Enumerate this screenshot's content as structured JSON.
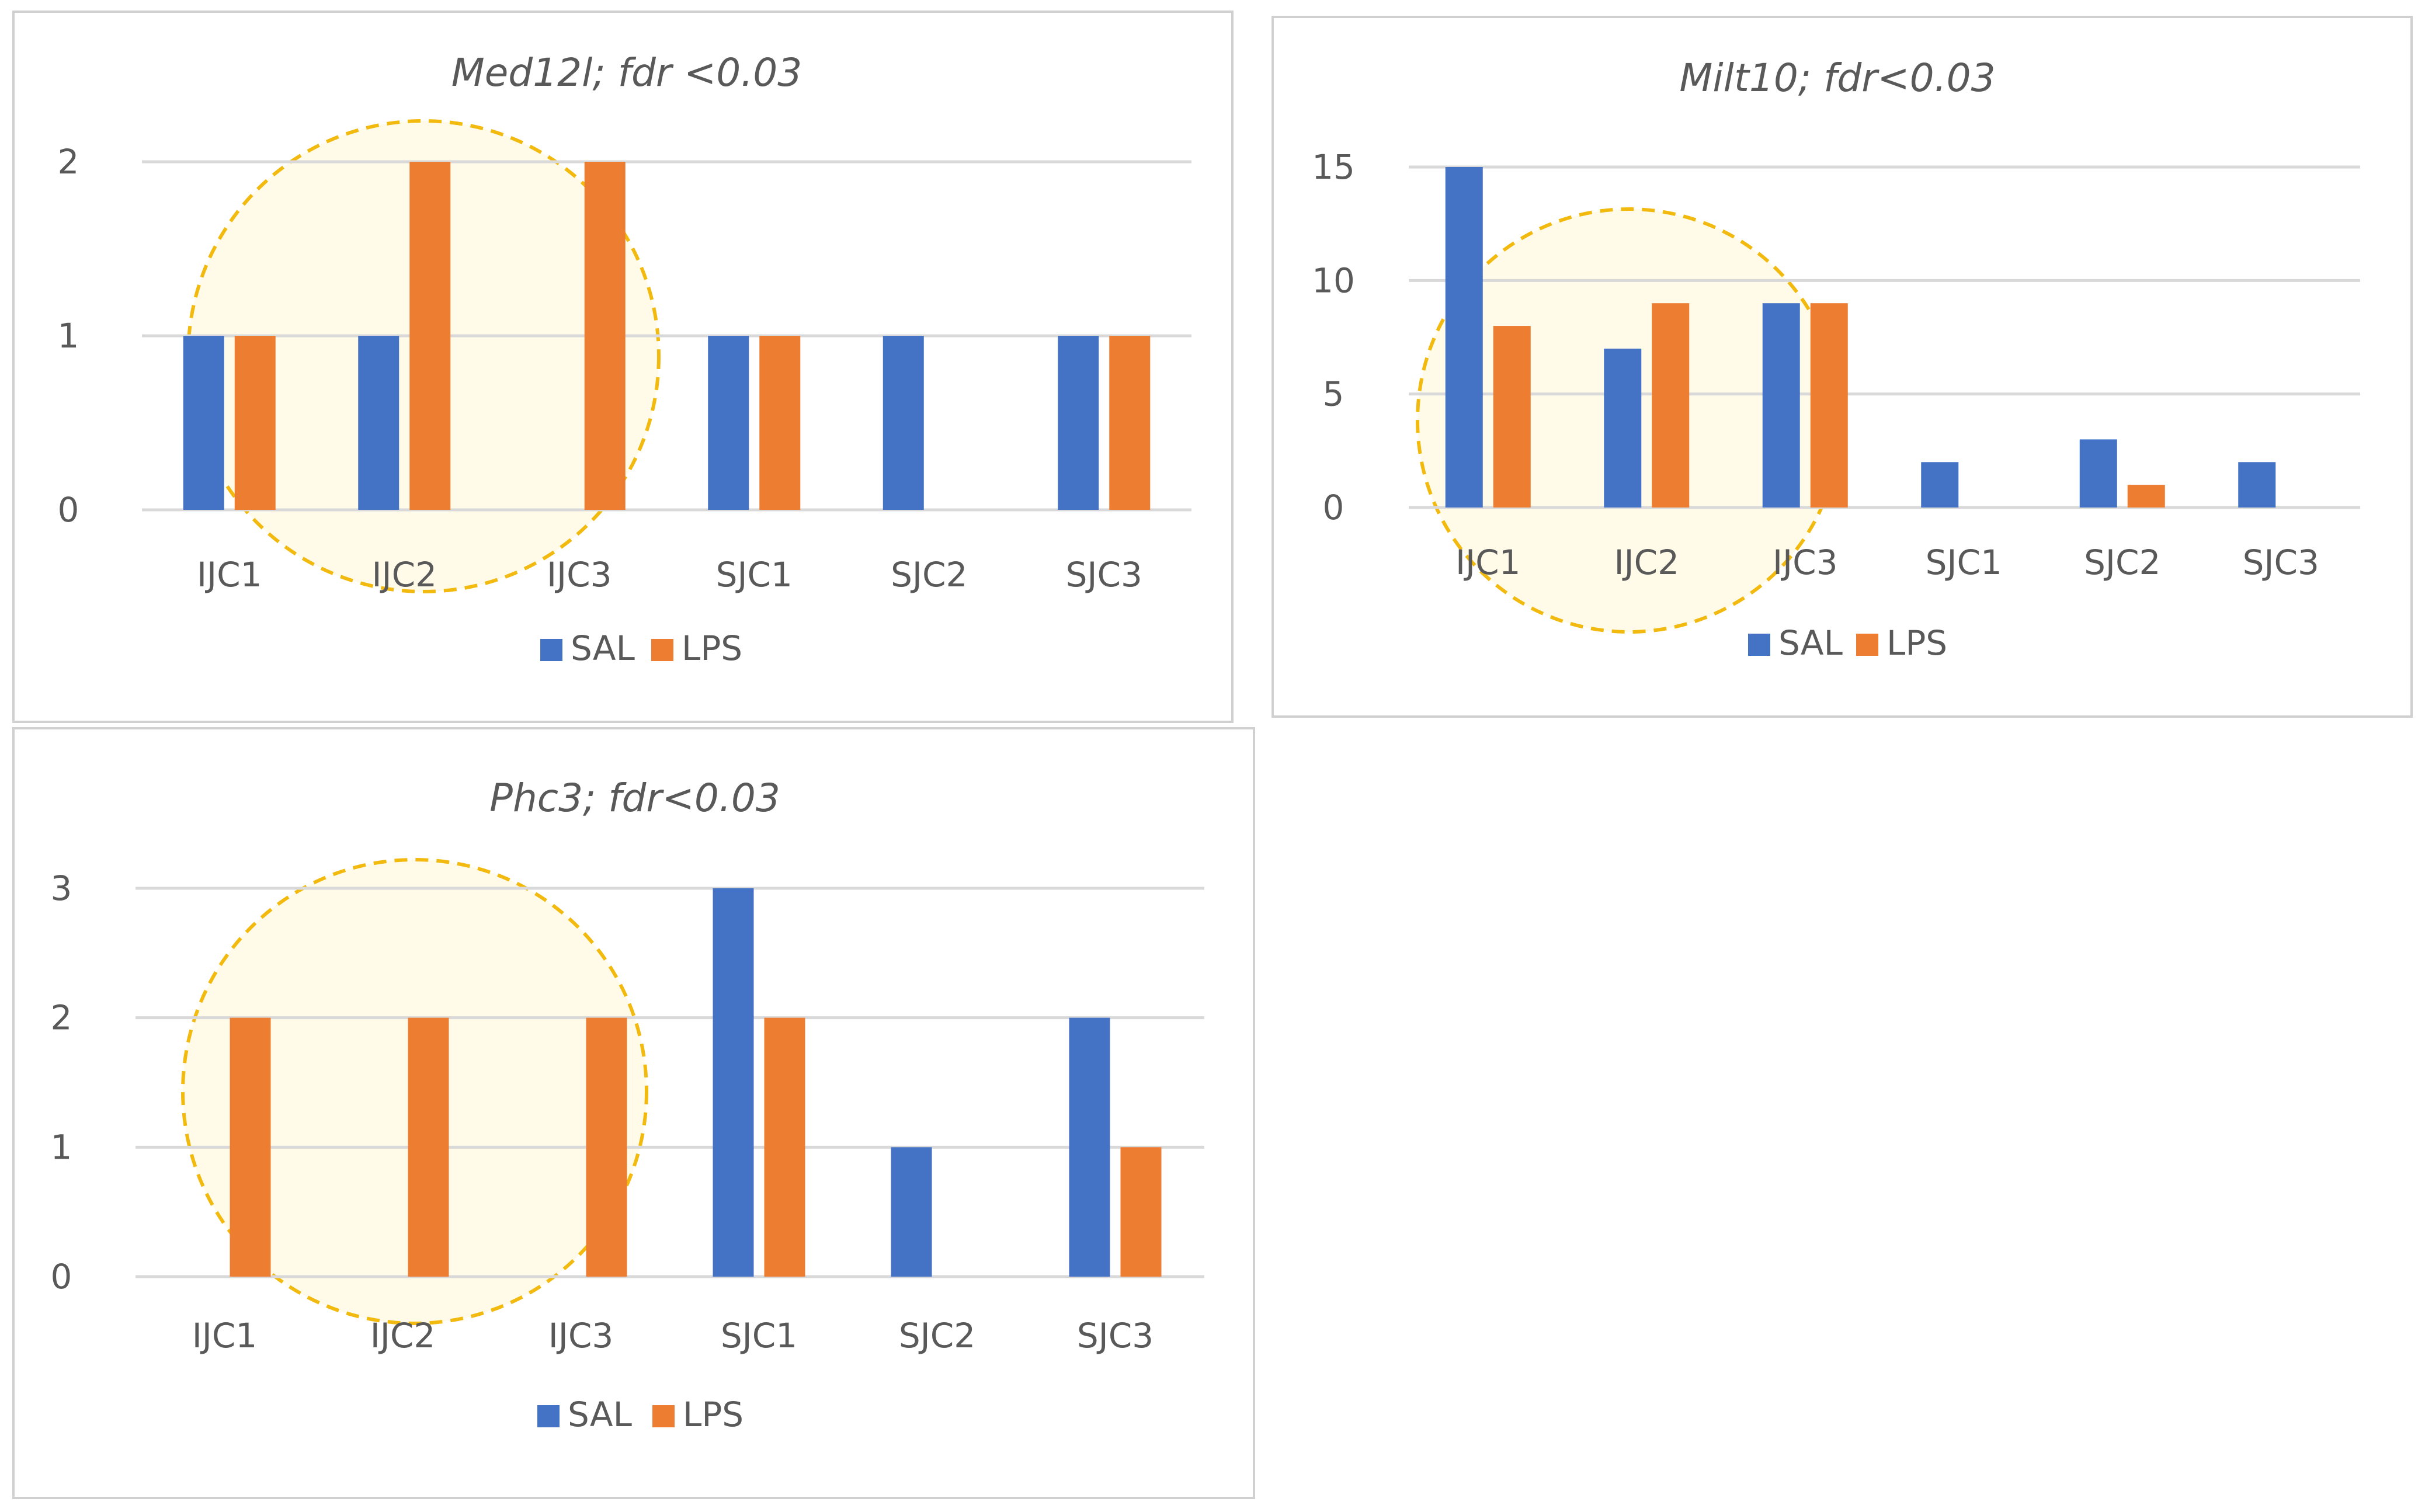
{
  "chart_data": [
    {
      "type": "bar",
      "title": "Med12l; fdr <0.03",
      "categories": [
        "IJC1",
        "IJC2",
        "IJC3",
        "SJC1",
        "SJC2",
        "SJC3"
      ],
      "series": [
        {
          "name": "SAL",
          "color": "#4472c4",
          "values": [
            1,
            1,
            0,
            1,
            1,
            1
          ]
        },
        {
          "name": "LPS",
          "color": "#ed7d31",
          "values": [
            1,
            2,
            2,
            1,
            0,
            1
          ]
        }
      ],
      "yticks": [
        0,
        1,
        2
      ],
      "ylim": [
        0,
        2
      ],
      "grid": true,
      "legend": "bottom",
      "highlight": "IJC1-IJC3"
    },
    {
      "type": "bar",
      "title": "Milt10; fdr<0.03",
      "categories": [
        "IJC1",
        "IJC2",
        "IJC3",
        "SJC1",
        "SJC2",
        "SJC3"
      ],
      "series": [
        {
          "name": "SAL",
          "color": "#4472c4",
          "values": [
            15,
            7,
            9,
            2,
            3,
            2
          ]
        },
        {
          "name": "LPS",
          "color": "#ed7d31",
          "values": [
            8,
            9,
            9,
            0,
            1,
            0
          ]
        }
      ],
      "yticks": [
        0,
        5,
        10,
        15
      ],
      "ylim": [
        0,
        15
      ],
      "grid": true,
      "legend": "bottom",
      "highlight": "IJC1-IJC3"
    },
    {
      "type": "bar",
      "title": "Phc3; fdr<0.03",
      "categories": [
        "IJC1",
        "IJC2",
        "IJC3",
        "SJC1",
        "SJC2",
        "SJC3"
      ],
      "series": [
        {
          "name": "SAL",
          "color": "#4472c4",
          "values": [
            0,
            0,
            0,
            3,
            1,
            2
          ]
        },
        {
          "name": "LPS",
          "color": "#ed7d31",
          "values": [
            2,
            2,
            2,
            2,
            0,
            1
          ]
        }
      ],
      "yticks": [
        0,
        1,
        2,
        3
      ],
      "ylim": [
        0,
        3
      ],
      "grid": true,
      "legend": "bottom",
      "highlight": "IJC1-IJC3"
    }
  ]
}
